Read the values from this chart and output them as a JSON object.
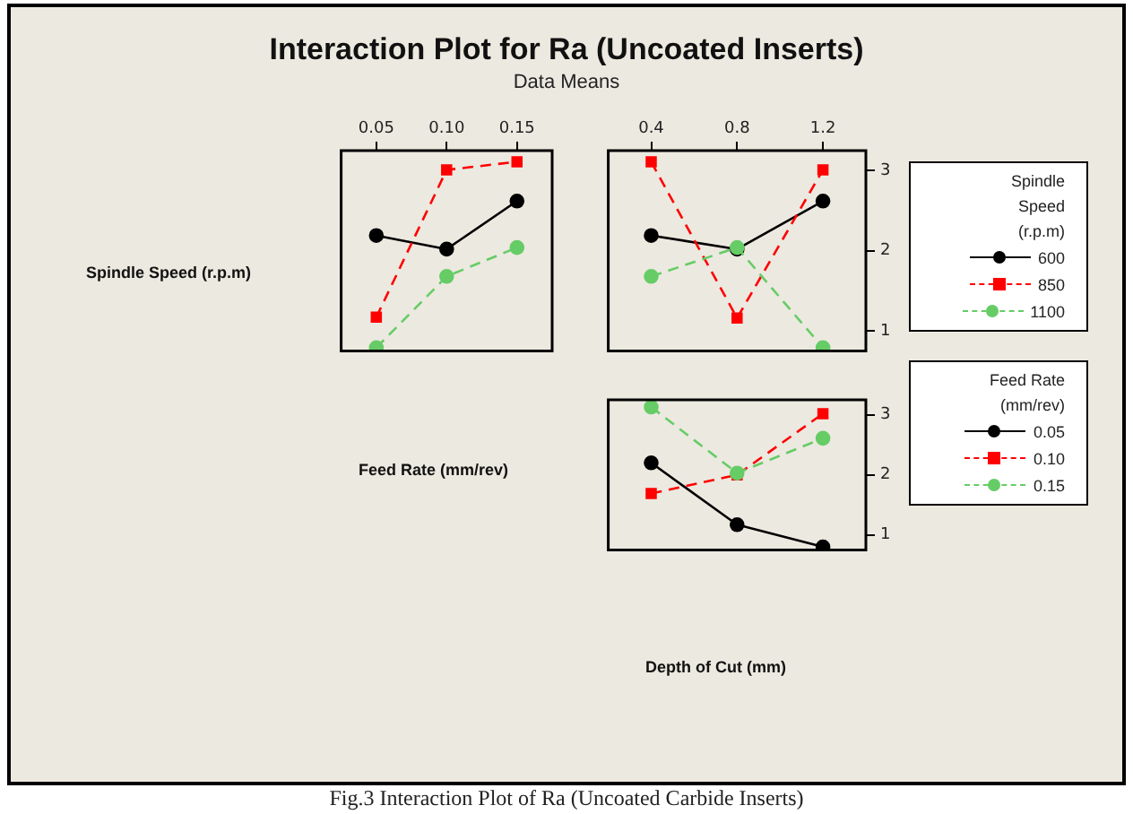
{
  "chart_data": [
    {
      "type": "line",
      "title": "Interaction Plot for Ra (Uncoated Inserts)",
      "subtitle": "Data Means",
      "ylabel": "Spindle Speed (r.p.m)",
      "x": [
        0.05,
        0.1,
        0.15
      ],
      "xlim": [
        0.025,
        0.175
      ],
      "xticks": [
        {
          "value": 0.05,
          "label": "0.05"
        },
        {
          "value": 0.1,
          "label": "0.10"
        },
        {
          "value": 0.15,
          "label": "0.15"
        }
      ],
      "ylim": [
        0.75,
        3.25
      ],
      "tick_labels": "x",
      "series": [
        {
          "color": "#000000",
          "values": [
            2.19,
            2.02,
            2.62
          ],
          "marker": "circle",
          "line_style": "solid"
        },
        {
          "color": "#ff0000",
          "values": [
            1.17,
            3.01,
            3.11
          ],
          "marker": "square",
          "line_style": "dashed"
        },
        {
          "color": "#66cc66",
          "values": [
            0.79,
            1.68,
            2.04
          ],
          "marker": "circle",
          "line_style": "dashed"
        }
      ]
    },
    {
      "type": "line",
      "legend_title": "Spindle Speed (r.p.m)",
      "legend": "right",
      "x": [
        0.4,
        0.8,
        1.2
      ],
      "xlim": [
        0.2,
        1.4
      ],
      "xticks": [
        0.4,
        0.8,
        1.2
      ],
      "ylim": [
        0.75,
        3.25
      ],
      "yticks": [
        1,
        2,
        3
      ],
      "series": [
        {
          "name": "600",
          "color": "#000000",
          "values": [
            2.19,
            2.02,
            2.62
          ],
          "marker": "circle",
          "line_style": "solid"
        },
        {
          "name": "850",
          "color": "#ff0000",
          "values": [
            3.11,
            1.16,
            3.01
          ],
          "marker": "square",
          "line_style": "dashed"
        },
        {
          "name": "1100",
          "color": "#66cc66",
          "values": [
            1.68,
            2.04,
            0.79
          ],
          "marker": "circle",
          "line_style": "dashed"
        }
      ]
    },
    {
      "type": "line",
      "ylabel": "Feed Rate (mm/rev)",
      "xlabel": "Depth of Cut (mm)",
      "legend_title": "Feed Rate (mm/rev)",
      "legend": "right",
      "x": [
        0.4,
        0.8,
        1.2
      ],
      "xlim": [
        0.2,
        1.4
      ],
      "ylim": [
        0.75,
        3.25
      ],
      "yticks": [
        1,
        2,
        3
      ],
      "tick_labels": "y",
      "annotations": [
        "Fig.3 Interaction Plot of Ra (Uncoated Carbide Inserts)"
      ],
      "series": [
        {
          "name": "0.05",
          "color": "#000000",
          "values": [
            2.2,
            1.17,
            0.8
          ],
          "marker": "circle",
          "line_style": "solid"
        },
        {
          "name": "0.10",
          "color": "#ff0000",
          "values": [
            1.69,
            2.0,
            3.02
          ],
          "marker": "square",
          "line_style": "dashed"
        },
        {
          "name": "0.15",
          "color": "#66cc66",
          "values": [
            3.13,
            2.03,
            2.61
          ],
          "marker": "circle",
          "line_style": "dashed"
        }
      ]
    }
  ]
}
